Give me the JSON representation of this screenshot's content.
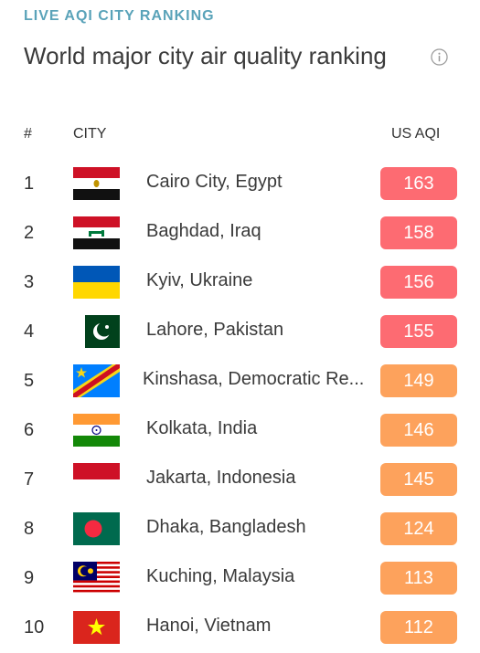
{
  "header": {
    "eyebrow": "LIVE AQI CITY RANKING",
    "title": "World major city air quality ranking",
    "info_icon": "info-circle-icon"
  },
  "columns": {
    "rank": "#",
    "city": "CITY",
    "aqi": "US AQI"
  },
  "colors": {
    "unhealthy": "#fd6b72",
    "sensitive": "#fda25c"
  },
  "rows": [
    {
      "rank": "1",
      "city": "Cairo City, Egypt",
      "aqi": "163",
      "level": "unhealthy",
      "flag": "egypt-flag-icon"
    },
    {
      "rank": "2",
      "city": "Baghdad, Iraq",
      "aqi": "158",
      "level": "unhealthy",
      "flag": "iraq-flag-icon"
    },
    {
      "rank": "3",
      "city": "Kyiv, Ukraine",
      "aqi": "156",
      "level": "unhealthy",
      "flag": "ukraine-flag-icon"
    },
    {
      "rank": "4",
      "city": "Lahore, Pakistan",
      "aqi": "155",
      "level": "unhealthy",
      "flag": "pakistan-flag-icon"
    },
    {
      "rank": "5",
      "city": "Kinshasa, Democratic Re...",
      "aqi": "149",
      "level": "sensitive",
      "flag": "dr-congo-flag-icon"
    },
    {
      "rank": "6",
      "city": "Kolkata, India",
      "aqi": "146",
      "level": "sensitive",
      "flag": "india-flag-icon"
    },
    {
      "rank": "7",
      "city": "Jakarta, Indonesia",
      "aqi": "145",
      "level": "sensitive",
      "flag": "indonesia-flag-icon"
    },
    {
      "rank": "8",
      "city": "Dhaka, Bangladesh",
      "aqi": "124",
      "level": "sensitive",
      "flag": "bangladesh-flag-icon"
    },
    {
      "rank": "9",
      "city": "Kuching, Malaysia",
      "aqi": "113",
      "level": "sensitive",
      "flag": "malaysia-flag-icon"
    },
    {
      "rank": "10",
      "city": "Hanoi, Vietnam",
      "aqi": "112",
      "level": "sensitive",
      "flag": "vietnam-flag-icon"
    }
  ]
}
